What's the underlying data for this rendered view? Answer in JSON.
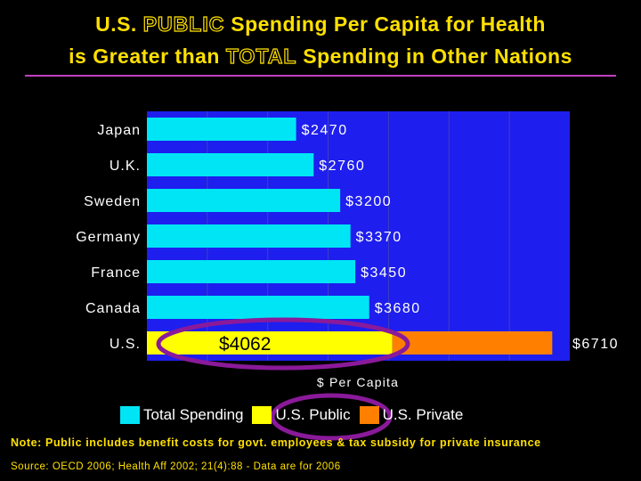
{
  "title": {
    "line1_a": "U.S.",
    "line1_b": "PUBLIC",
    "line1_c": "Spending Per Capita for Health",
    "line2_a": "is Greater than",
    "line2_b": "TOTAL",
    "line2_c": "Spending in Other Nations"
  },
  "colors": {
    "background": "#000000",
    "plot_area": "#1E1EEE",
    "total": "#00E5F5",
    "us_public": "#FFFF00",
    "us_private": "#FF8000",
    "title": "#FFE000",
    "highlight_ellipse": "#8A1A9A"
  },
  "chart_data": {
    "type": "bar",
    "orientation": "horizontal",
    "stacked": true,
    "categories": [
      "Japan",
      "U.K.",
      "Sweden",
      "Germany",
      "France",
      "Canada",
      "U.S."
    ],
    "series": [
      {
        "name": "Total Spending",
        "values": [
          2470,
          2760,
          3200,
          3370,
          3450,
          3680,
          null
        ]
      },
      {
        "name": "U.S. Public",
        "values": [
          null,
          null,
          null,
          null,
          null,
          null,
          4062
        ]
      },
      {
        "name": "U.S. Private",
        "values": [
          null,
          null,
          null,
          null,
          null,
          null,
          2648
        ]
      }
    ],
    "data_labels": [
      "$2470",
      "$2760",
      "$3200",
      "$3370",
      "$3450",
      "$3680",
      "$6710"
    ],
    "public_label": "$4062",
    "xlabel": "$ Per Capita",
    "xlim": [
      0,
      7000
    ],
    "gridlines": "vertical, on plot area",
    "legend_placement": "bottom"
  },
  "legend": [
    {
      "label": "Total Spending",
      "color": "#00E5F5"
    },
    {
      "label": "U.S. Public",
      "color": "#FFFF00"
    },
    {
      "label": "U.S. Private",
      "color": "#FF8000"
    }
  ],
  "note": "Note: Public includes benefit costs for govt. employees & tax subsidy for private insurance",
  "source": "Source: OECD 2006; Health Aff 2002; 21(4):88 - Data are for 2006"
}
